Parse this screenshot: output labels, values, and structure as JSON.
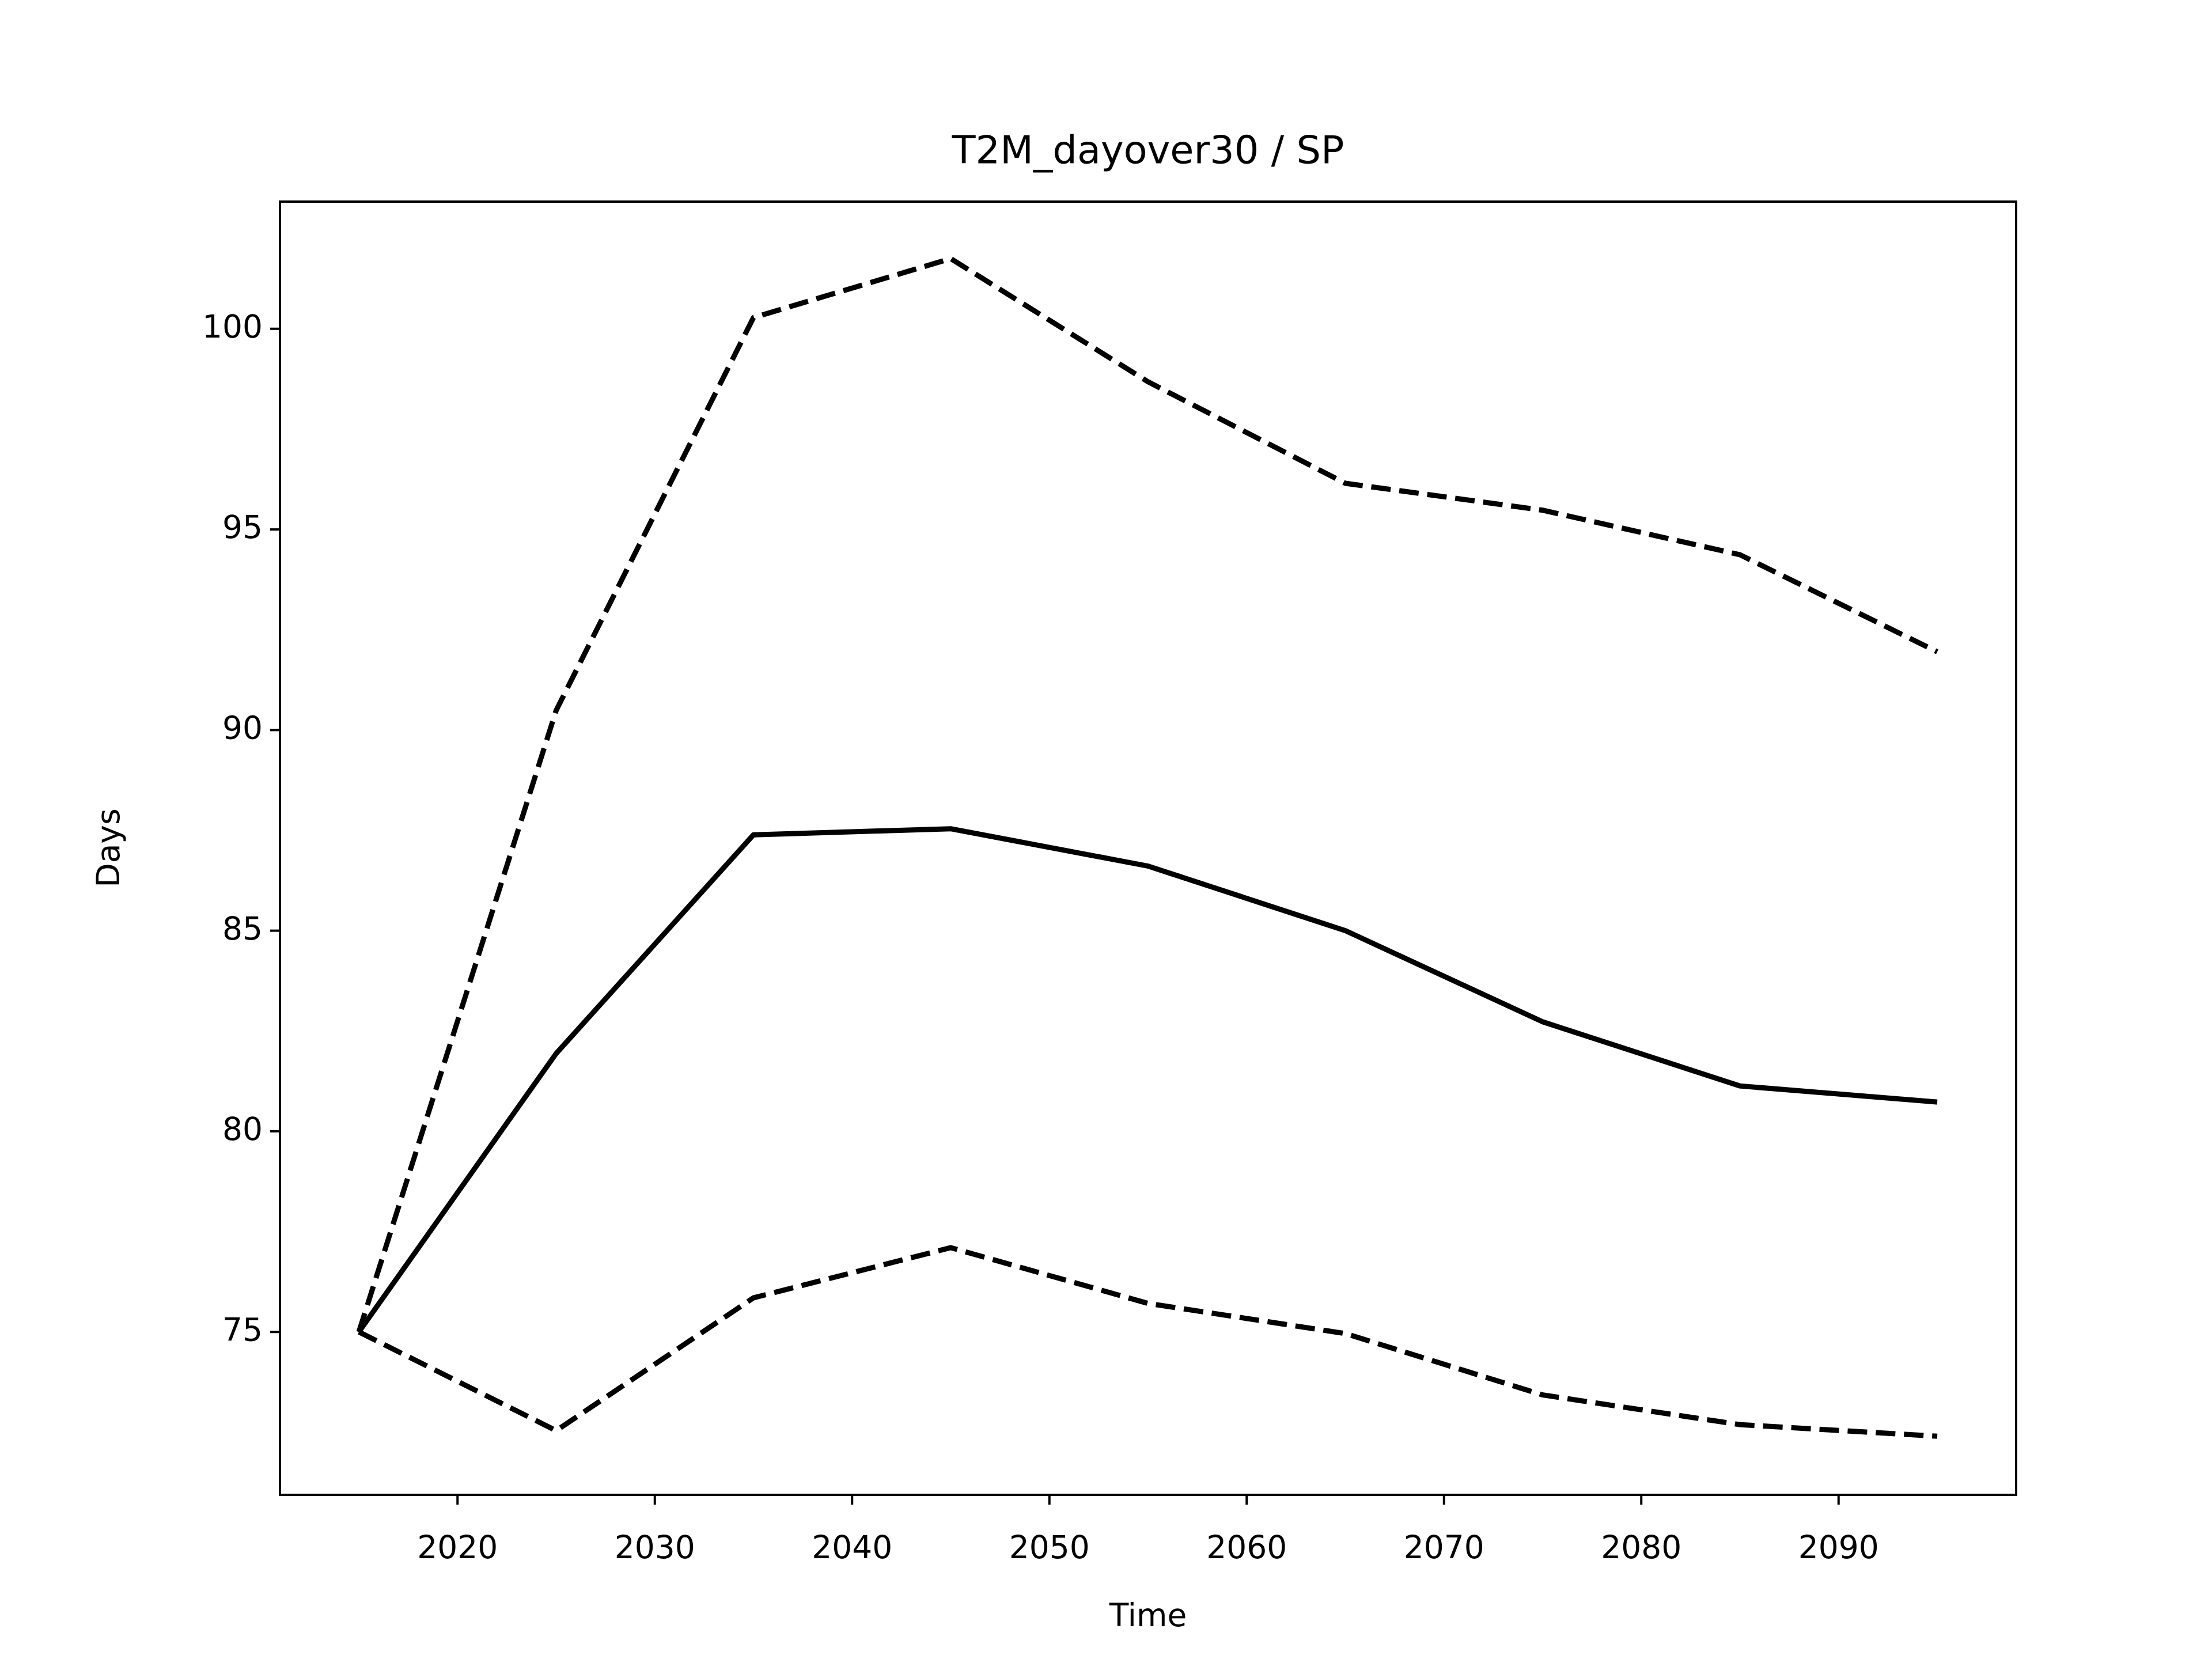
{
  "chart_data": {
    "type": "line",
    "title": "T2M_dayover30 / SP",
    "x_label": "Time",
    "y_label": "Days",
    "x": [
      2015,
      2025,
      2035,
      2045,
      2055,
      2065,
      2075,
      2085,
      2095
    ],
    "series": [
      {
        "color": "#000000",
        "dash": false,
        "values": [
          75.0,
          81.94,
          87.39,
          87.54,
          86.61,
          85.0,
          82.73,
          81.13,
          80.73
        ]
      },
      {
        "color": "#000000",
        "dash": true,
        "values": [
          75.0,
          90.49,
          100.28,
          101.75,
          98.68,
          96.15,
          95.48,
          94.37,
          91.95
        ]
      },
      {
        "color": "#000000",
        "dash": true,
        "values": [
          75.0,
          72.54,
          75.85,
          77.1,
          75.71,
          74.96,
          73.43,
          72.69,
          72.4
        ]
      }
    ],
    "xlim": [
      2011,
      2099
    ],
    "xticks": [
      2020,
      2030,
      2040,
      2050,
      2060,
      2070,
      2080,
      2090
    ],
    "ylim": [
      70.94,
      103.17
    ],
    "yticks": [
      75,
      80,
      85,
      90,
      95,
      100
    ],
    "grid": false
  }
}
